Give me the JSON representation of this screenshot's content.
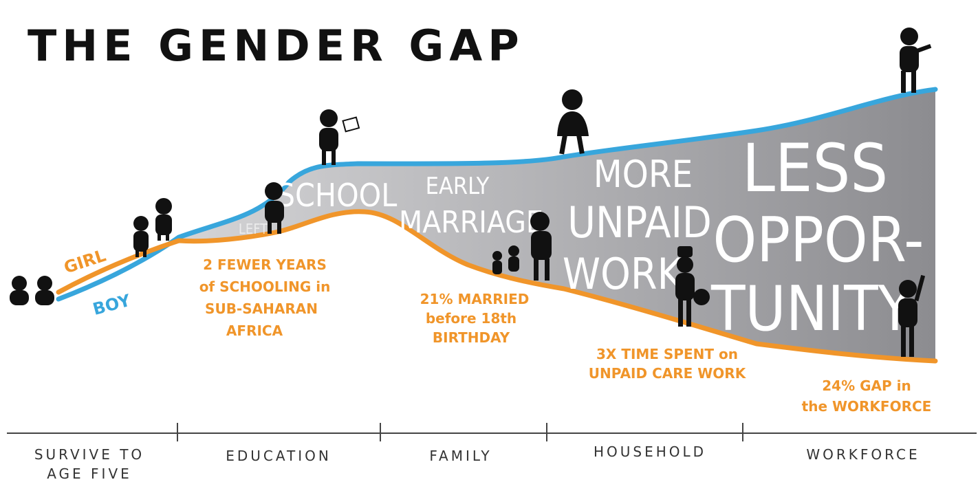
{
  "title": "THE GENDER GAP",
  "paths": {
    "girl": "GIRL",
    "boy": "BOY"
  },
  "overlays": {
    "left_school": [
      "LEFT",
      "SCHOOL"
    ],
    "early_marriage": [
      "EARLY",
      "MARRIAGE"
    ],
    "unpaid_work": [
      "MORE",
      "UNPAID",
      "WORK"
    ],
    "less_opportunity": [
      "LESS",
      "OPPOR-",
      "TUNITY"
    ]
  },
  "annotations": {
    "schooling": [
      "2 FEWER YEARS",
      "of SCHOOLING in",
      "SUB-SAHARAN",
      "AFRICA"
    ],
    "marriage": [
      "21% MARRIED",
      "before 18th",
      "BIRTHDAY"
    ],
    "care_work": [
      "3X TIME SPENT on",
      "UNPAID CARE WORK"
    ],
    "workforce": [
      "24% GAP in",
      "the WORKFORCE"
    ]
  },
  "stages": [
    [
      "SURVIVE TO",
      "AGE FIVE"
    ],
    [
      "EDUCATION"
    ],
    [
      "FAMILY"
    ],
    [
      "HOUSEHOLD"
    ],
    [
      "WORKFORCE"
    ]
  ]
}
